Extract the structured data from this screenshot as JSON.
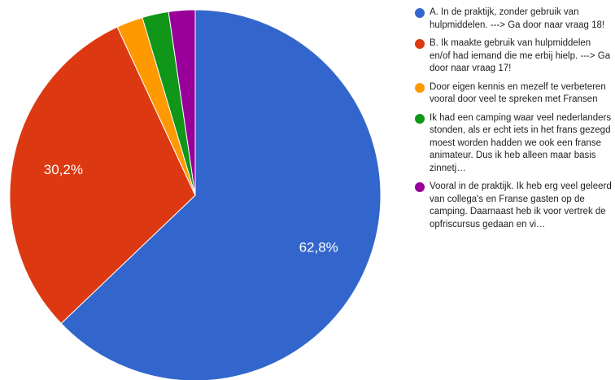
{
  "chart_data": {
    "type": "pie",
    "categories": [
      "A. In de praktijk, zonder gebruik van hulpmiddelen. ---> Ga door naar vraag 18!",
      "B. Ik maakte gebruik van hulpmiddelen en/of had iemand die me erbij hielp. ---> Ga door naar vraag 17!",
      "Door eigen kennis en mezelf te verbeteren vooral door veel te spreken met Fransen",
      "Ik had een camping waar veel nederlanders stonden, als er echt iets in het frans gezegd moest worden hadden we ook een franse animateur. Dus ik heb alleen maar basis zinnetj…",
      "Vooral in de praktijk. Ik heb erg veel geleerd van collega's en Franse gasten op de camping. Daarnaast heb ik voor vertrek de opfriscursus gedaan en vi…"
    ],
    "values": [
      62.8,
      30.2,
      2.3,
      2.3,
      2.3
    ],
    "value_labels": [
      "62,8%",
      "30,2%",
      null,
      null,
      null
    ],
    "colors": [
      "#3366cc",
      "#dc3912",
      "#ff9900",
      "#109618",
      "#990099"
    ],
    "legend": "right"
  }
}
